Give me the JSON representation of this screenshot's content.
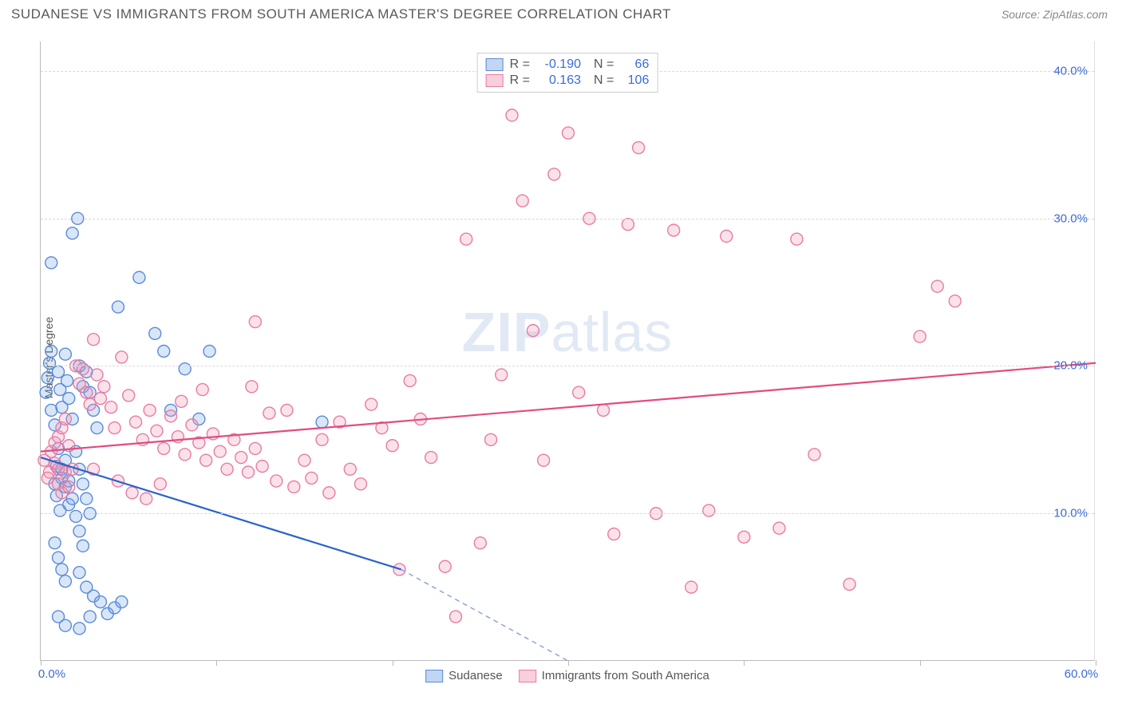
{
  "title": "SUDANESE VS IMMIGRANTS FROM SOUTH AMERICA MASTER'S DEGREE CORRELATION CHART",
  "source": "Source: ZipAtlas.com",
  "ylabel": "Master's Degree",
  "watermark_bold": "ZIP",
  "watermark_rest": "atlas",
  "chart": {
    "type": "scatter",
    "xlim": [
      0,
      60
    ],
    "ylim": [
      0,
      42
    ],
    "xticks": [
      0,
      10,
      20,
      30,
      40,
      50,
      60
    ],
    "yticks": [
      10,
      20,
      30,
      40
    ],
    "xtick_labels": {
      "0": "0.0%",
      "60": "60.0%"
    },
    "ytick_labels": {
      "10": "10.0%",
      "20": "20.0%",
      "30": "30.0%",
      "40": "40.0%"
    },
    "grid_color": "#d8d8d8",
    "background_color": "#ffffff",
    "marker_radius": 7.5,
    "marker_stroke_width": 1.4,
    "trend_line_width": 2.2,
    "series": [
      {
        "name": "Sudanese",
        "fill": "rgba(120,165,230,0.28)",
        "stroke": "#5a8bd8",
        "swatch_fill": "rgba(120,165,230,0.45)",
        "swatch_border": "#5a8bd8",
        "R": "-0.190",
        "N": "66",
        "trend": {
          "x1": 0,
          "y1": 13.8,
          "x2": 20.5,
          "y2": 6.2,
          "color": "#2a63c9",
          "dash_x1": 20.5,
          "dash_y1": 6.2,
          "dash_x2": 30,
          "dash_y2": 0,
          "dash_color": "#8aa8d0"
        },
        "points": [
          [
            0.3,
            18.2
          ],
          [
            0.4,
            19.2
          ],
          [
            0.5,
            20.2
          ],
          [
            0.6,
            17.0
          ],
          [
            0.8,
            16.0
          ],
          [
            0.6,
            21.0
          ],
          [
            0.9,
            13.2
          ],
          [
            1.0,
            19.6
          ],
          [
            1.1,
            18.4
          ],
          [
            1.2,
            17.2
          ],
          [
            1.4,
            20.8
          ],
          [
            1.5,
            19.0
          ],
          [
            1.6,
            17.8
          ],
          [
            1.8,
            16.4
          ],
          [
            1.0,
            14.4
          ],
          [
            1.2,
            13.0
          ],
          [
            1.4,
            11.8
          ],
          [
            1.6,
            10.6
          ],
          [
            0.8,
            12.0
          ],
          [
            0.9,
            11.2
          ],
          [
            1.1,
            10.2
          ],
          [
            1.2,
            12.4
          ],
          [
            1.4,
            13.6
          ],
          [
            1.6,
            12.2
          ],
          [
            1.8,
            11.0
          ],
          [
            2.0,
            9.8
          ],
          [
            2.2,
            8.8
          ],
          [
            2.4,
            7.8
          ],
          [
            0.6,
            27.0
          ],
          [
            1.8,
            29.0
          ],
          [
            2.1,
            30.0
          ],
          [
            2.2,
            20.0
          ],
          [
            2.4,
            18.6
          ],
          [
            2.6,
            19.6
          ],
          [
            2.8,
            18.2
          ],
          [
            3.0,
            17.0
          ],
          [
            3.2,
            15.8
          ],
          [
            2.0,
            14.2
          ],
          [
            2.2,
            13.0
          ],
          [
            2.4,
            12.0
          ],
          [
            2.6,
            11.0
          ],
          [
            2.8,
            10.0
          ],
          [
            0.8,
            8.0
          ],
          [
            1.0,
            7.0
          ],
          [
            1.2,
            6.2
          ],
          [
            1.4,
            5.4
          ],
          [
            2.2,
            6.0
          ],
          [
            2.6,
            5.0
          ],
          [
            3.0,
            4.4
          ],
          [
            3.4,
            4.0
          ],
          [
            1.0,
            3.0
          ],
          [
            1.4,
            2.4
          ],
          [
            2.2,
            2.2
          ],
          [
            3.8,
            3.2
          ],
          [
            4.2,
            3.6
          ],
          [
            4.6,
            4.0
          ],
          [
            4.4,
            24.0
          ],
          [
            5.6,
            26.0
          ],
          [
            6.5,
            22.2
          ],
          [
            7.0,
            21.0
          ],
          [
            7.4,
            17.0
          ],
          [
            8.2,
            19.8
          ],
          [
            9.0,
            16.4
          ],
          [
            16.0,
            16.2
          ],
          [
            9.6,
            21.0
          ],
          [
            2.8,
            3.0
          ]
        ]
      },
      {
        "name": "Immigrants from South America",
        "fill": "rgba(240,150,180,0.28)",
        "stroke": "#e87ba3",
        "swatch_fill": "rgba(240,150,180,0.45)",
        "swatch_border": "#e87ba3",
        "R": "0.163",
        "N": "106",
        "trend": {
          "x1": 0,
          "y1": 14.2,
          "x2": 60,
          "y2": 20.2,
          "color": "#e34b80"
        },
        "points": [
          [
            0.5,
            12.8
          ],
          [
            0.8,
            13.4
          ],
          [
            1.0,
            12.0
          ],
          [
            1.2,
            11.4
          ],
          [
            1.4,
            12.8
          ],
          [
            1.6,
            11.8
          ],
          [
            1.8,
            13.0
          ],
          [
            2.0,
            20.0
          ],
          [
            2.2,
            18.8
          ],
          [
            2.4,
            19.8
          ],
          [
            2.6,
            18.2
          ],
          [
            2.8,
            17.4
          ],
          [
            3.0,
            21.8
          ],
          [
            3.2,
            19.4
          ],
          [
            3.4,
            17.8
          ],
          [
            3.6,
            18.6
          ],
          [
            4.0,
            17.2
          ],
          [
            4.2,
            15.8
          ],
          [
            4.6,
            20.6
          ],
          [
            5.0,
            18.0
          ],
          [
            5.4,
            16.2
          ],
          [
            5.8,
            15.0
          ],
          [
            6.2,
            17.0
          ],
          [
            6.6,
            15.6
          ],
          [
            7.0,
            14.4
          ],
          [
            7.4,
            16.6
          ],
          [
            7.8,
            15.2
          ],
          [
            8.2,
            14.0
          ],
          [
            8.6,
            16.0
          ],
          [
            9.0,
            14.8
          ],
          [
            9.4,
            13.6
          ],
          [
            9.8,
            15.4
          ],
          [
            10.2,
            14.2
          ],
          [
            10.6,
            13.0
          ],
          [
            11.0,
            15.0
          ],
          [
            11.4,
            13.8
          ],
          [
            11.8,
            12.8
          ],
          [
            12.2,
            14.4
          ],
          [
            12.6,
            13.2
          ],
          [
            13.0,
            16.8
          ],
          [
            13.4,
            12.2
          ],
          [
            14.0,
            17.0
          ],
          [
            14.4,
            11.8
          ],
          [
            15.0,
            13.6
          ],
          [
            15.4,
            12.4
          ],
          [
            16.0,
            15.0
          ],
          [
            16.4,
            11.4
          ],
          [
            17.0,
            16.2
          ],
          [
            17.6,
            13.0
          ],
          [
            18.2,
            12.0
          ],
          [
            18.8,
            17.4
          ],
          [
            19.4,
            15.8
          ],
          [
            20.0,
            14.6
          ],
          [
            20.4,
            6.2
          ],
          [
            21.0,
            19.0
          ],
          [
            21.6,
            16.4
          ],
          [
            22.2,
            13.8
          ],
          [
            23.0,
            6.4
          ],
          [
            23.6,
            3.0
          ],
          [
            24.2,
            28.6
          ],
          [
            25.0,
            8.0
          ],
          [
            25.6,
            15.0
          ],
          [
            26.2,
            19.4
          ],
          [
            26.8,
            37.0
          ],
          [
            27.4,
            31.2
          ],
          [
            28.0,
            22.4
          ],
          [
            28.6,
            13.6
          ],
          [
            29.2,
            33.0
          ],
          [
            30.0,
            35.8
          ],
          [
            30.6,
            18.2
          ],
          [
            31.2,
            30.0
          ],
          [
            32.0,
            17.0
          ],
          [
            32.6,
            8.6
          ],
          [
            33.4,
            29.6
          ],
          [
            34.0,
            34.8
          ],
          [
            35.0,
            10.0
          ],
          [
            36.0,
            29.2
          ],
          [
            37.0,
            5.0
          ],
          [
            38.0,
            10.2
          ],
          [
            39.0,
            28.8
          ],
          [
            40.0,
            8.4
          ],
          [
            42.0,
            9.0
          ],
          [
            43.0,
            28.6
          ],
          [
            44.0,
            14.0
          ],
          [
            46.0,
            5.2
          ],
          [
            50.0,
            22.0
          ],
          [
            51.0,
            25.4
          ],
          [
            52.0,
            24.4
          ],
          [
            3.0,
            13.0
          ],
          [
            4.4,
            12.2
          ],
          [
            5.2,
            11.4
          ],
          [
            6.0,
            11.0
          ],
          [
            6.8,
            12.0
          ],
          [
            8.0,
            17.6
          ],
          [
            9.2,
            18.4
          ],
          [
            12.0,
            18.6
          ],
          [
            12.2,
            23.0
          ],
          [
            0.2,
            13.6
          ],
          [
            0.4,
            12.4
          ],
          [
            0.6,
            14.2
          ],
          [
            0.8,
            14.8
          ],
          [
            1.0,
            15.2
          ],
          [
            1.2,
            15.8
          ],
          [
            1.4,
            16.4
          ],
          [
            1.6,
            14.6
          ],
          [
            1.0,
            13.0
          ]
        ]
      }
    ]
  },
  "legend_labels": {
    "R": "R =",
    "N": "N ="
  }
}
